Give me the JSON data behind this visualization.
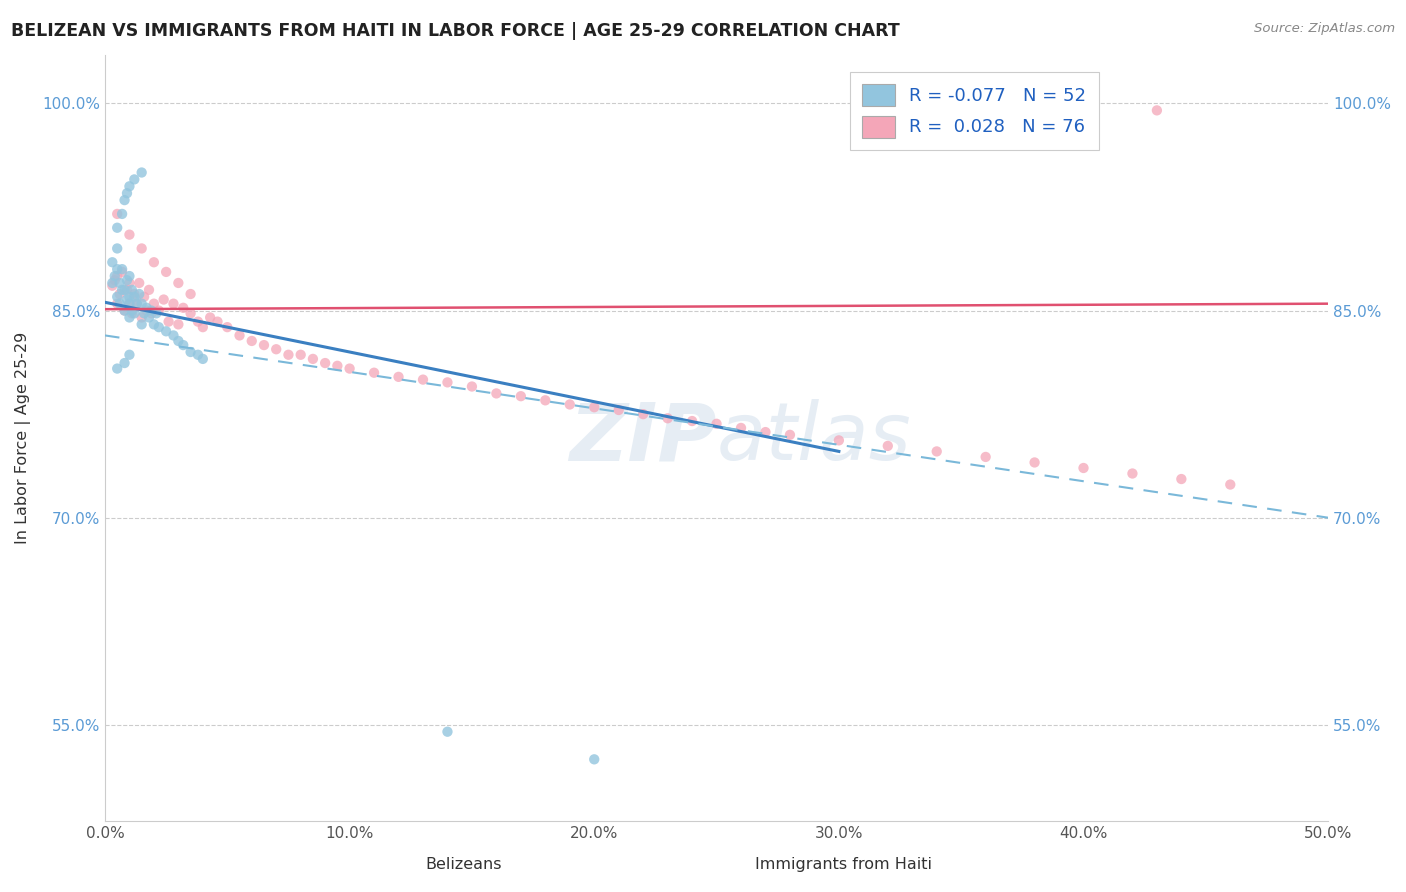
{
  "title": "BELIZEAN VS IMMIGRANTS FROM HAITI IN LABOR FORCE | AGE 25-29 CORRELATION CHART",
  "source": "Source: ZipAtlas.com",
  "ylabel": "In Labor Force | Age 25-29",
  "xlabel_belizeans": "Belizeans",
  "xlabel_haiti": "Immigrants from Haiti",
  "xmin": 0.0,
  "xmax": 0.5,
  "ymin": 0.48,
  "ymax": 1.035,
  "yticks": [
    0.55,
    0.7,
    0.85,
    1.0
  ],
  "ytick_labels": [
    "55.0%",
    "70.0%",
    "85.0%",
    "100.0%"
  ],
  "xticks": [
    0.0,
    0.1,
    0.2,
    0.3,
    0.4,
    0.5
  ],
  "xtick_labels": [
    "0.0%",
    "10.0%",
    "20.0%",
    "30.0%",
    "40.0%",
    "50.0%"
  ],
  "R_belizean": -0.077,
  "N_belizean": 52,
  "R_haiti": 0.028,
  "N_haiti": 76,
  "color_belizean": "#92c5de",
  "color_haiti": "#f4a6b8",
  "trend_color_belizean": "#3a7fc1",
  "trend_color_haiti": "#e05070",
  "watermark": "ZIPatlas",
  "belizean_x": [
    0.003,
    0.003,
    0.004,
    0.005,
    0.005,
    0.005,
    0.006,
    0.006,
    0.007,
    0.007,
    0.008,
    0.008,
    0.009,
    0.009,
    0.01,
    0.01,
    0.01,
    0.01,
    0.011,
    0.011,
    0.012,
    0.012,
    0.013,
    0.014,
    0.015,
    0.015,
    0.016,
    0.017,
    0.018,
    0.019,
    0.02,
    0.021,
    0.022,
    0.025,
    0.028,
    0.03,
    0.032,
    0.035,
    0.038,
    0.04,
    0.005,
    0.007,
    0.008,
    0.009,
    0.01,
    0.012,
    0.015,
    0.14,
    0.2,
    0.005,
    0.008,
    0.01
  ],
  "belizean_y": [
    0.87,
    0.885,
    0.875,
    0.86,
    0.88,
    0.895,
    0.855,
    0.87,
    0.865,
    0.88,
    0.85,
    0.865,
    0.858,
    0.872,
    0.845,
    0.86,
    0.875,
    0.855,
    0.85,
    0.865,
    0.848,
    0.86,
    0.855,
    0.862,
    0.84,
    0.855,
    0.848,
    0.852,
    0.845,
    0.85,
    0.84,
    0.848,
    0.838,
    0.835,
    0.832,
    0.828,
    0.825,
    0.82,
    0.818,
    0.815,
    0.91,
    0.92,
    0.93,
    0.935,
    0.94,
    0.945,
    0.95,
    0.545,
    0.525,
    0.808,
    0.812,
    0.818
  ],
  "haiti_x": [
    0.003,
    0.004,
    0.005,
    0.005,
    0.006,
    0.007,
    0.008,
    0.009,
    0.01,
    0.01,
    0.011,
    0.012,
    0.013,
    0.014,
    0.015,
    0.016,
    0.017,
    0.018,
    0.019,
    0.02,
    0.022,
    0.024,
    0.026,
    0.028,
    0.03,
    0.032,
    0.035,
    0.038,
    0.04,
    0.043,
    0.046,
    0.05,
    0.055,
    0.06,
    0.065,
    0.07,
    0.075,
    0.08,
    0.085,
    0.09,
    0.095,
    0.1,
    0.11,
    0.12,
    0.13,
    0.14,
    0.15,
    0.16,
    0.17,
    0.18,
    0.19,
    0.2,
    0.21,
    0.22,
    0.23,
    0.24,
    0.25,
    0.26,
    0.27,
    0.28,
    0.3,
    0.32,
    0.34,
    0.36,
    0.38,
    0.4,
    0.42,
    0.44,
    0.46,
    0.005,
    0.01,
    0.015,
    0.02,
    0.025,
    0.03,
    0.035,
    0.43
  ],
  "haiti_y": [
    0.868,
    0.872,
    0.855,
    0.875,
    0.862,
    0.878,
    0.85,
    0.865,
    0.855,
    0.87,
    0.848,
    0.862,
    0.855,
    0.87,
    0.845,
    0.86,
    0.85,
    0.865,
    0.848,
    0.855,
    0.85,
    0.858,
    0.842,
    0.855,
    0.84,
    0.852,
    0.848,
    0.842,
    0.838,
    0.845,
    0.842,
    0.838,
    0.832,
    0.828,
    0.825,
    0.822,
    0.818,
    0.818,
    0.815,
    0.812,
    0.81,
    0.808,
    0.805,
    0.802,
    0.8,
    0.798,
    0.795,
    0.79,
    0.788,
    0.785,
    0.782,
    0.78,
    0.778,
    0.775,
    0.772,
    0.77,
    0.768,
    0.765,
    0.762,
    0.76,
    0.756,
    0.752,
    0.748,
    0.744,
    0.74,
    0.736,
    0.732,
    0.728,
    0.724,
    0.92,
    0.905,
    0.895,
    0.885,
    0.878,
    0.87,
    0.862,
    0.995
  ]
}
